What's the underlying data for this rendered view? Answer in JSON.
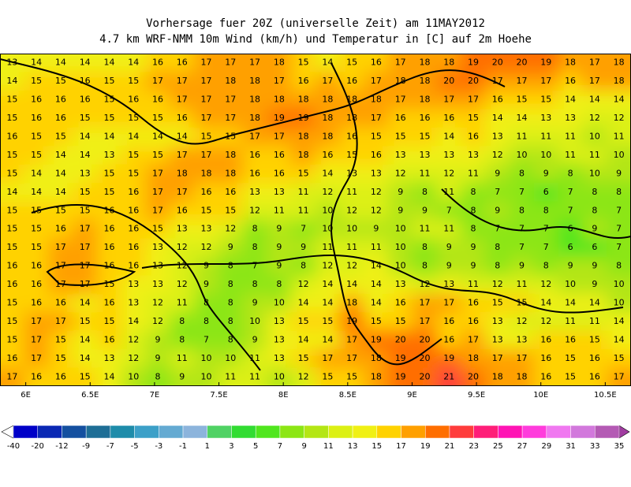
{
  "header": {
    "title": "Vorhersage fuer 20Z (universelle Zeit) am 11MAY2012",
    "subtitle": "4.7 km WRF-NMM 10m Wind (km/h) und Temperatur in [C] auf 2m Hoehe"
  },
  "map": {
    "lon_range": [
      5.8,
      10.7
    ],
    "lon_ticks": [
      {
        "value": 6,
        "label": "6E"
      },
      {
        "value": 6.5,
        "label": "6.5E"
      },
      {
        "value": 7,
        "label": "7E"
      },
      {
        "value": 7.5,
        "label": "7.5E"
      },
      {
        "value": 8,
        "label": "8E"
      },
      {
        "value": 8.5,
        "label": "8.5E"
      },
      {
        "value": 9,
        "label": "9E"
      },
      {
        "value": 9.5,
        "label": "9.5E"
      },
      {
        "value": 10,
        "label": "10E"
      },
      {
        "value": 10.5,
        "label": "10.5E"
      }
    ],
    "temperature_grid": [
      [
        13,
        14,
        14,
        14,
        14,
        14,
        16,
        16,
        17,
        17,
        17,
        18,
        15,
        14,
        15,
        16,
        17,
        18,
        18,
        19,
        20,
        20,
        19,
        18,
        17,
        18
      ],
      [
        14,
        15,
        15,
        16,
        15,
        15,
        17,
        17,
        17,
        18,
        18,
        17,
        16,
        17,
        16,
        17,
        18,
        18,
        20,
        20,
        17,
        17,
        17,
        16,
        17,
        18
      ],
      [
        15,
        16,
        16,
        16,
        15,
        16,
        16,
        17,
        17,
        17,
        18,
        18,
        18,
        18,
        18,
        18,
        17,
        18,
        17,
        17,
        16,
        15,
        15,
        14,
        14,
        14
      ],
      [
        15,
        16,
        16,
        15,
        15,
        15,
        15,
        16,
        17,
        17,
        18,
        19,
        19,
        18,
        18,
        17,
        16,
        16,
        16,
        15,
        14,
        14,
        13,
        13,
        12,
        12
      ],
      [
        16,
        15,
        15,
        14,
        14,
        14,
        14,
        14,
        15,
        15,
        17,
        17,
        18,
        18,
        16,
        15,
        15,
        15,
        14,
        16,
        13,
        11,
        11,
        11,
        10,
        11
      ],
      [
        15,
        15,
        14,
        14,
        13,
        15,
        15,
        17,
        17,
        18,
        16,
        16,
        18,
        16,
        15,
        16,
        13,
        13,
        13,
        13,
        12,
        10,
        10,
        11,
        11,
        10
      ],
      [
        15,
        14,
        14,
        13,
        15,
        15,
        17,
        18,
        18,
        18,
        16,
        16,
        15,
        14,
        13,
        13,
        12,
        11,
        12,
        11,
        9,
        8,
        9,
        8,
        10,
        9
      ],
      [
        14,
        14,
        14,
        15,
        15,
        16,
        17,
        17,
        16,
        16,
        13,
        13,
        11,
        12,
        11,
        12,
        9,
        8,
        11,
        8,
        7,
        7,
        6,
        7,
        8,
        8
      ],
      [
        15,
        15,
        15,
        15,
        16,
        16,
        17,
        16,
        15,
        15,
        12,
        11,
        11,
        10,
        12,
        12,
        9,
        9,
        7,
        8,
        9,
        8,
        8,
        7,
        8,
        7
      ],
      [
        15,
        15,
        16,
        17,
        16,
        16,
        15,
        13,
        13,
        12,
        8,
        9,
        7,
        10,
        10,
        9,
        10,
        11,
        11,
        8,
        7,
        7,
        7,
        6,
        9,
        7
      ],
      [
        15,
        15,
        17,
        17,
        16,
        16,
        13,
        12,
        12,
        9,
        8,
        9,
        9,
        11,
        11,
        11,
        10,
        8,
        9,
        9,
        8,
        7,
        7,
        6,
        6,
        7
      ],
      [
        16,
        16,
        17,
        17,
        16,
        16,
        13,
        12,
        9,
        8,
        7,
        9,
        8,
        12,
        12,
        14,
        10,
        8,
        9,
        9,
        8,
        9,
        8,
        9,
        9,
        8
      ],
      [
        16,
        16,
        17,
        17,
        15,
        13,
        13,
        12,
        9,
        8,
        8,
        8,
        12,
        14,
        14,
        14,
        13,
        12,
        13,
        11,
        12,
        11,
        12,
        10,
        9,
        10
      ],
      [
        15,
        16,
        16,
        14,
        16,
        13,
        12,
        11,
        8,
        8,
        9,
        10,
        14,
        14,
        18,
        14,
        16,
        17,
        17,
        16,
        15,
        15,
        14,
        14,
        14,
        10
      ],
      [
        15,
        17,
        17,
        15,
        15,
        14,
        12,
        8,
        8,
        8,
        10,
        13,
        15,
        15,
        19,
        15,
        15,
        17,
        16,
        16,
        13,
        12,
        12,
        11,
        11,
        14
      ],
      [
        15,
        17,
        15,
        14,
        16,
        12,
        9,
        8,
        7,
        8,
        9,
        13,
        14,
        14,
        17,
        19,
        20,
        20,
        16,
        17,
        13,
        13,
        16,
        16,
        15,
        14
      ],
      [
        16,
        17,
        15,
        14,
        13,
        12,
        9,
        11,
        10,
        10,
        11,
        13,
        15,
        17,
        17,
        18,
        19,
        20,
        19,
        18,
        17,
        17,
        16,
        15,
        16,
        15
      ],
      [
        17,
        16,
        16,
        15,
        14,
        10,
        8,
        9,
        10,
        11,
        11,
        10,
        12,
        15,
        15,
        18,
        19,
        20,
        21,
        20,
        18,
        18,
        16,
        15,
        16,
        17
      ]
    ]
  },
  "colorbar": {
    "levels": [
      -40,
      -20,
      -12,
      -9,
      -7,
      -5,
      -3,
      -1,
      1,
      3,
      5,
      7,
      9,
      11,
      13,
      15,
      17,
      19,
      21,
      23,
      25,
      27,
      29,
      31,
      33,
      35
    ],
    "colors": [
      "#ffffff",
      "#0000c8",
      "#0a28b4",
      "#1450a0",
      "#1e6e96",
      "#1e8caa",
      "#3ca0c8",
      "#64aad2",
      "#8cb4dc",
      "#50d264",
      "#32dc32",
      "#50e61e",
      "#8ce614",
      "#b4e614",
      "#dcf014",
      "#f0f014",
      "#ffd200",
      "#ffa000",
      "#ff6e00",
      "#ff3c3c",
      "#ff1e78",
      "#ff14b4",
      "#ff3cdc",
      "#f078f0",
      "#d278dc",
      "#b45ab4",
      "#a03ca0"
    ]
  }
}
